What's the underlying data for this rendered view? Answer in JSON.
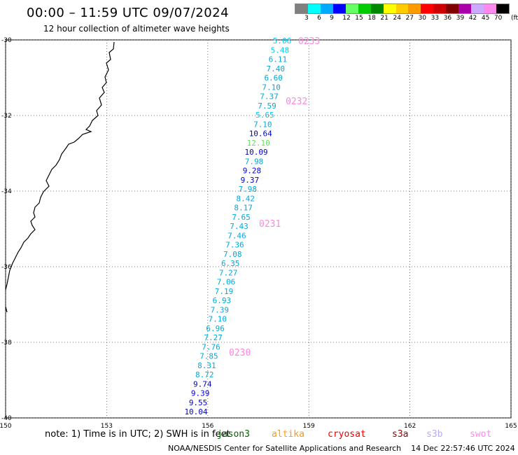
{
  "header": {
    "title": "00:00 – 11:59 UTC 09/07/2024",
    "subtitle": "12 hour collection of altimeter wave heights"
  },
  "legend": {
    "unit": "(ft)",
    "labels": [
      "3",
      "6",
      "9",
      "12",
      "15",
      "18",
      "21",
      "24",
      "27",
      "30",
      "33",
      "36",
      "39",
      "42",
      "45",
      "70"
    ],
    "colors": [
      "#808080",
      "#00ffff",
      "#00aaff",
      "#0000ff",
      "#66ff66",
      "#00cc00",
      "#008800",
      "#ffff00",
      "#ffcc00",
      "#ff9900",
      "#ff0000",
      "#cc0000",
      "#800000",
      "#aa00aa",
      "#ccaaff",
      "#ff88ee",
      "#000000"
    ]
  },
  "axes": {
    "lon_labels": [
      "150",
      "153",
      "156",
      "159",
      "162",
      "165"
    ],
    "lat_labels": [
      "-30",
      "-32",
      "-34",
      "-36",
      "-38",
      "-40"
    ]
  },
  "passes": [
    {
      "label": "0233"
    },
    {
      "label": "0232"
    },
    {
      "label": "0231"
    },
    {
      "label": "0230"
    }
  ],
  "wave_heights": [
    {
      "text": "5.06",
      "color": "#00ccee"
    },
    {
      "text": "5.48",
      "color": "#00ccee"
    },
    {
      "text": "6.11",
      "color": "#00aadd"
    },
    {
      "text": "7.40",
      "color": "#00aadd"
    },
    {
      "text": "6.60",
      "color": "#00aadd"
    },
    {
      "text": "7.10",
      "color": "#00aadd"
    },
    {
      "text": "7.37",
      "color": "#00aadd"
    },
    {
      "text": "7.59",
      "color": "#00aadd"
    },
    {
      "text": "5.65",
      "color": "#00ccee"
    },
    {
      "text": "7.10",
      "color": "#00aadd"
    },
    {
      "text": "10.64",
      "color": "#0000cc"
    },
    {
      "text": "12.10",
      "color": "#66dd66"
    },
    {
      "text": "10.09",
      "color": "#0000cc"
    },
    {
      "text": "7.98",
      "color": "#00aadd"
    },
    {
      "text": "9.28",
      "color": "#0000cc"
    },
    {
      "text": "9.37",
      "color": "#0000cc"
    },
    {
      "text": "7.98",
      "color": "#00aadd"
    },
    {
      "text": "8.42",
      "color": "#00aadd"
    },
    {
      "text": "8.17",
      "color": "#00aadd"
    },
    {
      "text": "7.65",
      "color": "#00aadd"
    },
    {
      "text": "7.43",
      "color": "#00aadd"
    },
    {
      "text": "7.46",
      "color": "#00aadd"
    },
    {
      "text": "7.36",
      "color": "#00aadd"
    },
    {
      "text": "7.08",
      "color": "#00aadd"
    },
    {
      "text": "6.35",
      "color": "#00aadd"
    },
    {
      "text": "7.27",
      "color": "#00aadd"
    },
    {
      "text": "7.06",
      "color": "#00aadd"
    },
    {
      "text": "7.19",
      "color": "#00aadd"
    },
    {
      "text": "6.93",
      "color": "#00aadd"
    },
    {
      "text": "7.39",
      "color": "#00aadd"
    },
    {
      "text": "7.10",
      "color": "#00aadd"
    },
    {
      "text": "6.96",
      "color": "#00aadd"
    },
    {
      "text": "7.27",
      "color": "#00aadd"
    },
    {
      "text": "7.76",
      "color": "#00aadd"
    },
    {
      "text": "7.85",
      "color": "#00aadd"
    },
    {
      "text": "8.31",
      "color": "#00aadd"
    },
    {
      "text": "8.72",
      "color": "#00aadd"
    },
    {
      "text": "9.74",
      "color": "#0000cc"
    },
    {
      "text": "9.39",
      "color": "#0000cc"
    },
    {
      "text": "9.55",
      "color": "#0000cc"
    },
    {
      "text": "10.04",
      "color": "#0000cc"
    }
  ],
  "footer": {
    "note": "note: 1) Time is in UTC; 2) SWH is in feet",
    "missions": [
      {
        "name": "jason3",
        "color": "#006600"
      },
      {
        "name": "altika",
        "color": "#ff9900"
      },
      {
        "name": "cryosat",
        "color": "#ee0000"
      },
      {
        "name": "s3a",
        "color": "#990000"
      },
      {
        "name": "s3b",
        "color": "#bbaaee"
      },
      {
        "name": "swot",
        "color": "#ff88ee"
      }
    ],
    "credits": "NOAA/NESDIS Center for Satellite Applications and Research",
    "generated": "14 Dec 22:57:46 UTC 2024"
  }
}
